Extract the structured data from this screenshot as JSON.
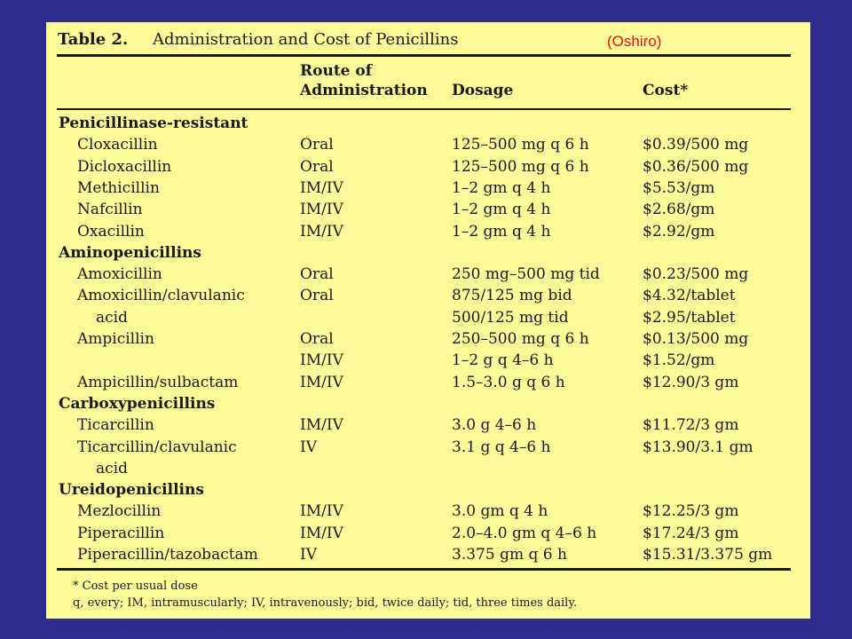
{
  "table": {
    "title_prefix": "Table 2.",
    "title_text": "Administration and Cost of Penicillins",
    "citation": "(Oshiro)",
    "headers": {
      "route_line1": "Route of",
      "route_line2": "Administration",
      "dosage": "Dosage",
      "cost": "Cost*"
    },
    "rows": [
      {
        "name": "Penicillinase-resistant",
        "kind": "category",
        "route": "",
        "dosage": "",
        "cost": ""
      },
      {
        "name": "Cloxacillin",
        "kind": "drug",
        "route": "Oral",
        "dosage": "125–500 mg q 6 h",
        "cost": "$0.39/500 mg"
      },
      {
        "name": "Dicloxacillin",
        "kind": "drug",
        "route": "Oral",
        "dosage": "125–500 mg q 6 h",
        "cost": "$0.36/500 mg"
      },
      {
        "name": "Methicillin",
        "kind": "drug",
        "route": "IM/IV",
        "dosage": "1–2 gm q 4 h",
        "cost": "$5.53/gm"
      },
      {
        "name": "Nafcillin",
        "kind": "drug",
        "route": "IM/IV",
        "dosage": "1–2 gm q 4 h",
        "cost": "$2.68/gm"
      },
      {
        "name": "Oxacillin",
        "kind": "drug",
        "route": "IM/IV",
        "dosage": "1–2 gm q 4 h",
        "cost": "$2.92/gm"
      },
      {
        "name": "Aminopenicillins",
        "kind": "category",
        "route": "",
        "dosage": "",
        "cost": ""
      },
      {
        "name": "Amoxicillin",
        "kind": "drug",
        "route": "Oral",
        "dosage": "250 mg–500 mg tid",
        "cost": "$0.23/500 mg"
      },
      {
        "name": "Amoxicillin/clavulanic",
        "kind": "drug",
        "route": "Oral",
        "dosage": "875/125 mg bid",
        "cost": "$4.32/tablet"
      },
      {
        "name": "acid",
        "kind": "continuation",
        "route": "",
        "dosage": "500/125 mg tid",
        "cost": "$2.95/tablet"
      },
      {
        "name": "Ampicillin",
        "kind": "drug",
        "route": "Oral",
        "dosage": "250–500 mg q 6 h",
        "cost": "$0.13/500 mg"
      },
      {
        "name": "",
        "kind": "drug",
        "route": "IM/IV",
        "dosage": "1–2 g q 4–6 h",
        "cost": "$1.52/gm"
      },
      {
        "name": "Ampicillin/sulbactam",
        "kind": "drug",
        "route": "IM/IV",
        "dosage": "1.5–3.0 g q 6 h",
        "cost": "$12.90/3 gm"
      },
      {
        "name": "Carboxypenicillins",
        "kind": "category",
        "route": "",
        "dosage": "",
        "cost": ""
      },
      {
        "name": "Ticarcillin",
        "kind": "drug",
        "route": "IM/IV",
        "dosage": "3.0 g 4–6 h",
        "cost": "$11.72/3 gm"
      },
      {
        "name": "Ticarcillin/clavulanic",
        "kind": "drug",
        "route": "IV",
        "dosage": "3.1 g q 4–6 h",
        "cost": "$13.90/3.1 gm"
      },
      {
        "name": "acid",
        "kind": "continuation",
        "route": "",
        "dosage": "",
        "cost": ""
      },
      {
        "name": "Ureidopenicillins",
        "kind": "category",
        "route": "",
        "dosage": "",
        "cost": ""
      },
      {
        "name": "Mezlocillin",
        "kind": "drug",
        "route": "IM/IV",
        "dosage": "3.0 gm q 4 h",
        "cost": "$12.25/3 gm"
      },
      {
        "name": "Piperacillin",
        "kind": "drug",
        "route": "IM/IV",
        "dosage": "2.0–4.0 gm q 4–6 h",
        "cost": "$17.24/3 gm"
      },
      {
        "name": "Piperacillin/tazobactam",
        "kind": "drug",
        "route": "IV",
        "dosage": "3.375 gm q 6 h",
        "cost": "$15.31/3.375 gm"
      }
    ],
    "footnotes": [
      "* Cost per usual dose",
      "q, every; IM, intramuscularly; IV, intravenously; bid, twice daily; tid, three times daily."
    ]
  }
}
